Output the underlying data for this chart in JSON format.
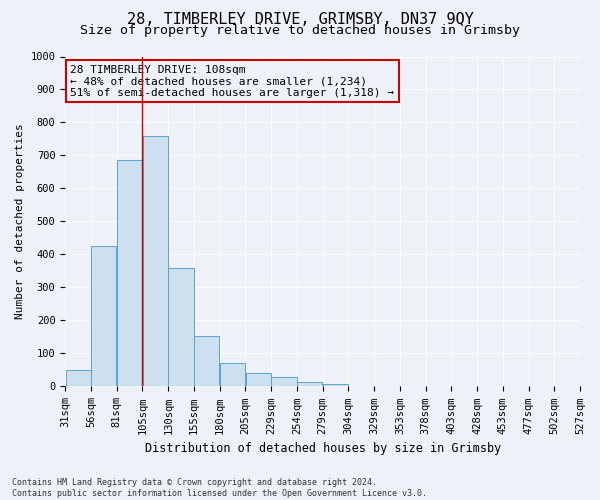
{
  "title": "28, TIMBERLEY DRIVE, GRIMSBY, DN37 9QY",
  "subtitle": "Size of property relative to detached houses in Grimsby",
  "xlabel": "Distribution of detached houses by size in Grimsby",
  "ylabel": "Number of detached properties",
  "footer_line1": "Contains HM Land Registry data © Crown copyright and database right 2024.",
  "footer_line2": "Contains public sector information licensed under the Open Government Licence v3.0.",
  "annotation_line1": "28 TIMBERLEY DRIVE: 108sqm",
  "annotation_line2": "← 48% of detached houses are smaller (1,234)",
  "annotation_line3": "51% of semi-detached houses are larger (1,318) →",
  "bar_heights": [
    50,
    425,
    685,
    760,
    358,
    152,
    72,
    40,
    28,
    12,
    8,
    2,
    1,
    1,
    0,
    0,
    0,
    0,
    0,
    1
  ],
  "tick_labels": [
    "31sqm",
    "56sqm",
    "81sqm",
    "105sqm",
    "130sqm",
    "155sqm",
    "180sqm",
    "205sqm",
    "229sqm",
    "254sqm",
    "279sqm",
    "304sqm",
    "329sqm",
    "353sqm",
    "378sqm",
    "403sqm",
    "428sqm",
    "453sqm",
    "477sqm",
    "502sqm",
    "527sqm"
  ],
  "ylim": [
    0,
    1000
  ],
  "yticks": [
    0,
    100,
    200,
    300,
    400,
    500,
    600,
    700,
    800,
    900,
    1000
  ],
  "bar_color": "#cce0f0",
  "bar_edge_color": "#5ba3d0",
  "vline_color": "#cc0000",
  "vline_bar_index": 3,
  "annotation_box_color": "#cc0000",
  "bg_color": "#eef2f8",
  "grid_color": "#ffffff",
  "title_fontsize": 11,
  "subtitle_fontsize": 9.5,
  "xlabel_fontsize": 8.5,
  "ylabel_fontsize": 8,
  "tick_fontsize": 7.5,
  "annotation_fontsize": 8,
  "footer_fontsize": 6
}
